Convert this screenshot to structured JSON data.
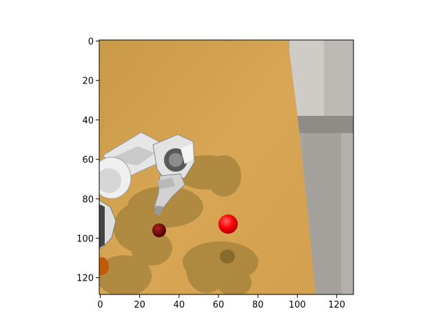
{
  "figure": {
    "scene": "simulated robot arm above a wooden table with a bright red ball, a dark red ball and an orange object; grey tiled floor on the right",
    "colors": {
      "wood": "#d4a24f",
      "wood_dark": "#b98a3c",
      "shadow": "#8f7430",
      "floor": "#a9a6a1",
      "floor_light": "#c8c6c2",
      "red_ball": "#ff0000",
      "dark_red_ball": "#7a0000",
      "orange_object": "#c25a0a",
      "arm_white": "#e8e8e8",
      "arm_grey": "#505050"
    }
  },
  "axes": {
    "xlim": [
      0,
      128
    ],
    "ylim": [
      128,
      0
    ],
    "xticks": [
      "0",
      "20",
      "40",
      "60",
      "80",
      "100",
      "120"
    ],
    "yticks": [
      "0",
      "20",
      "40",
      "60",
      "80",
      "100",
      "120"
    ],
    "xtick_values": [
      0,
      20,
      40,
      60,
      80,
      100,
      120
    ],
    "ytick_values": [
      0,
      20,
      40,
      60,
      80,
      100,
      120
    ]
  }
}
